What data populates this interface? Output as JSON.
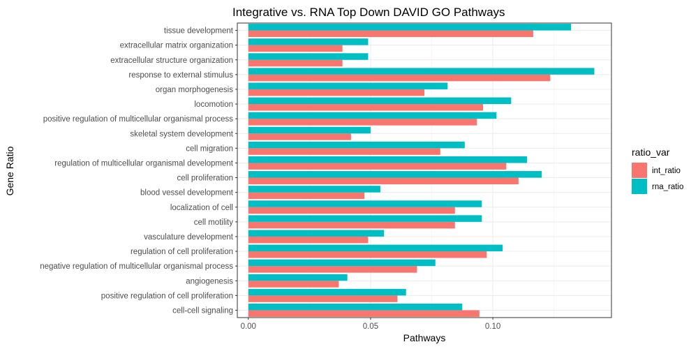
{
  "chart_data": {
    "type": "bar",
    "orientation": "horizontal",
    "title": "Integrative vs. RNA Top Down DAVID GO Pathways",
    "xlabel": "Pathways",
    "ylabel": "Gene Ratio",
    "xlim": [
      -0.0045,
      0.1485
    ],
    "x_ticks": [
      0.0,
      0.05,
      0.1
    ],
    "x_tick_labels": [
      "0.00",
      "0.05",
      "0.10"
    ],
    "grid": true,
    "legend": {
      "title": "ratio_var",
      "position": "right"
    },
    "categories": [
      "tissue development",
      "extracellular matrix organization",
      "extracellular structure organization",
      "response to external stimulus",
      "organ morphogenesis",
      "locomotion",
      "positive regulation of multicellular organismal process",
      "skeletal system development",
      "cell migration",
      "regulation of multicellular organismal development",
      "cell proliferation",
      "blood vessel development",
      "localization of cell",
      "cell motility",
      "vasculature development",
      "regulation of cell proliferation",
      "negative regulation of multicellular organismal process",
      "angiogenesis",
      "positive regulation of cell proliferation",
      "cell-cell signaling"
    ],
    "series": [
      {
        "name": "int_ratio",
        "color": "#F8766D",
        "values": [
          0.1165,
          0.0385,
          0.0385,
          0.1235,
          0.072,
          0.096,
          0.0935,
          0.042,
          0.0785,
          0.1055,
          0.1105,
          0.0475,
          0.0845,
          0.0845,
          0.049,
          0.0975,
          0.069,
          0.037,
          0.061,
          0.0945
        ]
      },
      {
        "name": "rna_ratio",
        "color": "#00BFC4",
        "values": [
          0.132,
          0.049,
          0.049,
          0.1415,
          0.0815,
          0.1075,
          0.1015,
          0.05,
          0.0885,
          0.114,
          0.12,
          0.054,
          0.0955,
          0.0955,
          0.0555,
          0.104,
          0.0765,
          0.0405,
          0.0645,
          0.0875
        ]
      }
    ]
  }
}
